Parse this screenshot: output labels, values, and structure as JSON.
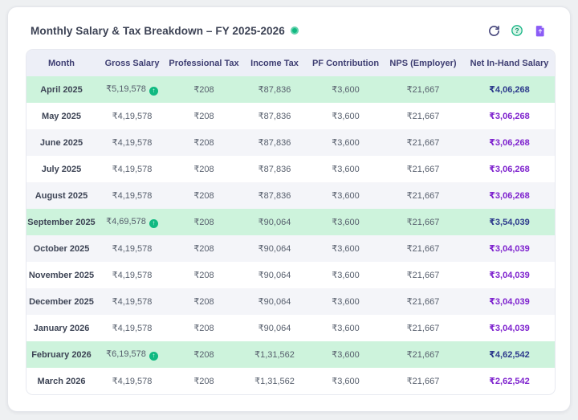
{
  "header": {
    "title": "Monthly Salary & Tax Breakdown – FY 2025-2026",
    "actions": {
      "refresh_tooltip": "refresh",
      "help_tooltip": "help",
      "report_tooltip": "export report"
    }
  },
  "colors": {
    "badge_green": "#10b981",
    "header_bg": "#edeff7",
    "header_text": "#3e3e72",
    "highlight_row_bg": "#cdf3dc",
    "stripe_row_bg": "#f4f5f9",
    "net_normal": "#7e22ce",
    "net_highlight": "#2d3a8c"
  },
  "table": {
    "columns": [
      "Month",
      "Gross Salary",
      "Professional Tax",
      "Income Tax",
      "PF Contribution",
      "NPS (Employer)",
      "Net In-Hand Salary"
    ],
    "rows": [
      {
        "month": "April 2025",
        "gross": "₹5,19,578",
        "gross_badge": true,
        "professional_tax": "₹208",
        "income_tax": "₹87,836",
        "pf": "₹3,600",
        "nps": "₹21,667",
        "net": "₹4,06,268",
        "highlight": true
      },
      {
        "month": "May 2025",
        "gross": "₹4,19,578",
        "gross_badge": false,
        "professional_tax": "₹208",
        "income_tax": "₹87,836",
        "pf": "₹3,600",
        "nps": "₹21,667",
        "net": "₹3,06,268",
        "highlight": false
      },
      {
        "month": "June 2025",
        "gross": "₹4,19,578",
        "gross_badge": false,
        "professional_tax": "₹208",
        "income_tax": "₹87,836",
        "pf": "₹3,600",
        "nps": "₹21,667",
        "net": "₹3,06,268",
        "highlight": false
      },
      {
        "month": "July 2025",
        "gross": "₹4,19,578",
        "gross_badge": false,
        "professional_tax": "₹208",
        "income_tax": "₹87,836",
        "pf": "₹3,600",
        "nps": "₹21,667",
        "net": "₹3,06,268",
        "highlight": false
      },
      {
        "month": "August 2025",
        "gross": "₹4,19,578",
        "gross_badge": false,
        "professional_tax": "₹208",
        "income_tax": "₹87,836",
        "pf": "₹3,600",
        "nps": "₹21,667",
        "net": "₹3,06,268",
        "highlight": false
      },
      {
        "month": "September 2025",
        "gross": "₹4,69,578",
        "gross_badge": true,
        "professional_tax": "₹208",
        "income_tax": "₹90,064",
        "pf": "₹3,600",
        "nps": "₹21,667",
        "net": "₹3,54,039",
        "highlight": true
      },
      {
        "month": "October 2025",
        "gross": "₹4,19,578",
        "gross_badge": false,
        "professional_tax": "₹208",
        "income_tax": "₹90,064",
        "pf": "₹3,600",
        "nps": "₹21,667",
        "net": "₹3,04,039",
        "highlight": false
      },
      {
        "month": "November 2025",
        "gross": "₹4,19,578",
        "gross_badge": false,
        "professional_tax": "₹208",
        "income_tax": "₹90,064",
        "pf": "₹3,600",
        "nps": "₹21,667",
        "net": "₹3,04,039",
        "highlight": false
      },
      {
        "month": "December 2025",
        "gross": "₹4,19,578",
        "gross_badge": false,
        "professional_tax": "₹208",
        "income_tax": "₹90,064",
        "pf": "₹3,600",
        "nps": "₹21,667",
        "net": "₹3,04,039",
        "highlight": false
      },
      {
        "month": "January 2026",
        "gross": "₹4,19,578",
        "gross_badge": false,
        "professional_tax": "₹208",
        "income_tax": "₹90,064",
        "pf": "₹3,600",
        "nps": "₹21,667",
        "net": "₹3,04,039",
        "highlight": false
      },
      {
        "month": "February 2026",
        "gross": "₹6,19,578",
        "gross_badge": true,
        "professional_tax": "₹208",
        "income_tax": "₹1,31,562",
        "pf": "₹3,600",
        "nps": "₹21,667",
        "net": "₹4,62,542",
        "highlight": true
      },
      {
        "month": "March 2026",
        "gross": "₹4,19,578",
        "gross_badge": false,
        "professional_tax": "₹208",
        "income_tax": "₹1,31,562",
        "pf": "₹3,600",
        "nps": "₹21,667",
        "net": "₹2,62,542",
        "highlight": false
      }
    ]
  }
}
